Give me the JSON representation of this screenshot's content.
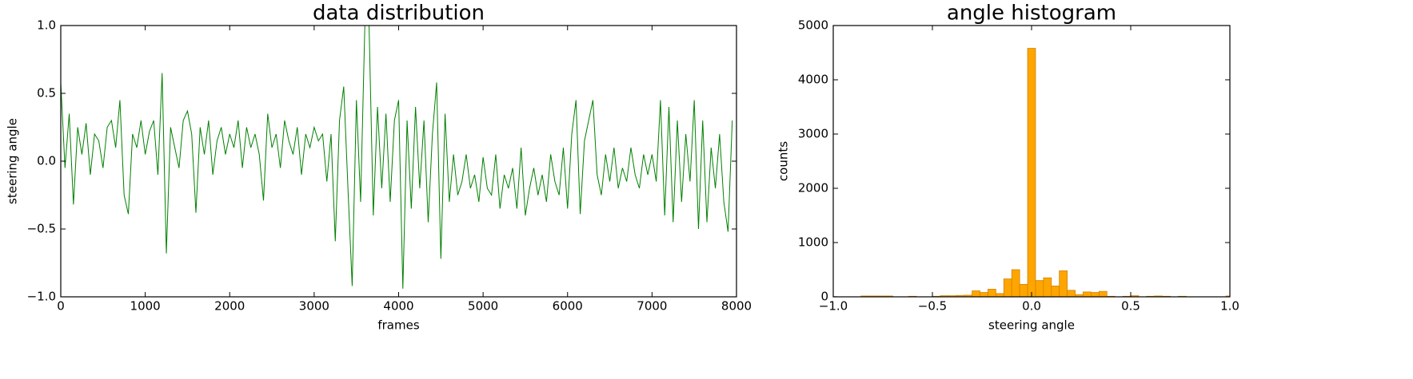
{
  "chart_data": [
    {
      "type": "line",
      "title": "data distribution",
      "x_label": "frames",
      "y_label": "steering angle",
      "color": "#008000",
      "x": [
        0,
        50,
        100,
        150,
        200,
        250,
        300,
        350,
        400,
        450,
        500,
        550,
        600,
        650,
        700,
        750,
        800,
        850,
        900,
        950,
        1000,
        1050,
        1100,
        1150,
        1200,
        1250,
        1300,
        1350,
        1400,
        1450,
        1500,
        1550,
        1600,
        1650,
        1700,
        1750,
        1800,
        1850,
        1900,
        1950,
        2000,
        2050,
        2100,
        2150,
        2200,
        2250,
        2300,
        2350,
        2400,
        2450,
        2500,
        2550,
        2600,
        2650,
        2700,
        2750,
        2800,
        2850,
        2900,
        2950,
        3000,
        3050,
        3100,
        3150,
        3200,
        3250,
        3300,
        3350,
        3400,
        3450,
        3500,
        3550,
        3600,
        3650,
        3700,
        3750,
        3800,
        3850,
        3900,
        3950,
        4000,
        4050,
        4100,
        4150,
        4200,
        4250,
        4300,
        4350,
        4400,
        4450,
        4500,
        4550,
        4600,
        4650,
        4700,
        4750,
        4800,
        4850,
        4900,
        4950,
        5000,
        5050,
        5100,
        5150,
        5200,
        5250,
        5300,
        5350,
        5400,
        5450,
        5500,
        5550,
        5600,
        5650,
        5700,
        5750,
        5800,
        5850,
        5900,
        5950,
        6000,
        6050,
        6100,
        6150,
        6200,
        6250,
        6300,
        6350,
        6400,
        6450,
        6500,
        6550,
        6600,
        6650,
        6700,
        6750,
        6800,
        6850,
        6900,
        6950,
        7000,
        7050,
        7100,
        7150,
        7200,
        7250,
        7300,
        7350,
        7400,
        7450,
        7500,
        7550,
        7600,
        7650,
        7700,
        7750,
        7800,
        7850,
        7900,
        7950
      ],
      "values": [
        0.58,
        -0.05,
        0.35,
        -0.32,
        0.25,
        0.05,
        0.28,
        -0.1,
        0.2,
        0.15,
        -0.05,
        0.25,
        0.3,
        0.1,
        0.45,
        -0.25,
        -0.39,
        0.2,
        0.1,
        0.3,
        0.05,
        0.22,
        0.3,
        -0.1,
        0.65,
        -0.68,
        0.25,
        0.1,
        -0.05,
        0.3,
        0.37,
        0.2,
        -0.38,
        0.25,
        0.05,
        0.3,
        -0.1,
        0.15,
        0.25,
        0.05,
        0.2,
        0.1,
        0.3,
        -0.05,
        0.25,
        0.1,
        0.2,
        0.05,
        -0.29,
        0.35,
        0.1,
        0.2,
        -0.05,
        0.3,
        0.15,
        0.05,
        0.25,
        -0.1,
        0.2,
        0.1,
        0.25,
        0.15,
        0.2,
        -0.15,
        0.2,
        -0.59,
        0.3,
        0.55,
        -0.2,
        -0.92,
        0.45,
        -0.3,
        1.0,
        1.0,
        -0.4,
        0.4,
        -0.2,
        0.35,
        -0.3,
        0.3,
        0.45,
        -0.94,
        0.3,
        -0.35,
        0.4,
        -0.2,
        0.3,
        -0.45,
        0.2,
        0.58,
        -0.72,
        0.35,
        -0.3,
        0.05,
        -0.25,
        -0.15,
        0.05,
        -0.2,
        -0.1,
        -0.3,
        0.03,
        -0.2,
        -0.25,
        0.05,
        -0.35,
        -0.1,
        -0.2,
        -0.05,
        -0.35,
        0.1,
        -0.4,
        -0.2,
        -0.05,
        -0.25,
        -0.1,
        -0.3,
        0.05,
        -0.15,
        -0.25,
        0.1,
        -0.35,
        0.2,
        0.45,
        -0.39,
        0.15,
        0.3,
        0.45,
        -0.1,
        -0.25,
        0.05,
        -0.15,
        0.1,
        -0.2,
        -0.05,
        -0.15,
        0.1,
        -0.1,
        -0.2,
        0.05,
        -0.1,
        0.05,
        -0.15,
        0.45,
        -0.4,
        0.4,
        -0.45,
        0.3,
        -0.3,
        0.2,
        -0.15,
        0.45,
        -0.5,
        0.3,
        -0.45,
        0.1,
        -0.2,
        0.2,
        -0.3,
        -0.52,
        0.3
      ],
      "xlim": [
        0,
        8000
      ],
      "xticks": [
        0,
        1000,
        2000,
        3000,
        4000,
        5000,
        6000,
        7000,
        8000
      ],
      "ylim": [
        -1,
        1
      ],
      "yticks": [
        {
          "value": -1,
          "label": "−1.0"
        },
        {
          "value": -0.5,
          "label": "−0.5"
        },
        {
          "value": 0,
          "label": "0.0"
        },
        {
          "value": 0.5,
          "label": "0.5"
        },
        {
          "value": 1,
          "label": "1.0"
        }
      ],
      "grid": false
    },
    {
      "type": "histogram",
      "title": "angle histogram",
      "x_label": "steering angle",
      "y_label": "counts",
      "color": "#ffa500",
      "edge_color": "#d08400",
      "bins": [
        -1.02,
        -0.98,
        -0.94,
        -0.9,
        -0.86,
        -0.82,
        -0.78,
        -0.74,
        -0.7,
        -0.66,
        -0.62,
        -0.58,
        -0.54,
        -0.5,
        -0.46,
        -0.42,
        -0.38,
        -0.34,
        -0.3,
        -0.26,
        -0.22,
        -0.18,
        -0.14,
        -0.1,
        -0.06,
        -0.02,
        0.02,
        0.06,
        0.1,
        0.14,
        0.18,
        0.22,
        0.26,
        0.3,
        0.34,
        0.38,
        0.42,
        0.46,
        0.5,
        0.54,
        0.58,
        0.62,
        0.66,
        0.7,
        0.74,
        0.78,
        0.82,
        0.86,
        0.9,
        0.94,
        0.98,
        1.02
      ],
      "values": [
        5,
        0,
        0,
        0,
        15,
        15,
        15,
        15,
        0,
        0,
        10,
        0,
        0,
        10,
        20,
        20,
        25,
        30,
        110,
        80,
        140,
        60,
        330,
        500,
        230,
        4580,
        300,
        350,
        200,
        480,
        120,
        40,
        90,
        80,
        100,
        10,
        0,
        10,
        20,
        0,
        10,
        15,
        10,
        0,
        10,
        0,
        0,
        0,
        0,
        0,
        15
      ],
      "xlim": [
        -1,
        1
      ],
      "xticks": [
        {
          "value": -1,
          "label": "−1.0"
        },
        {
          "value": -0.5,
          "label": "−0.5"
        },
        {
          "value": 0,
          "label": "0.0"
        },
        {
          "value": 0.5,
          "label": "0.5"
        },
        {
          "value": 1,
          "label": "1.0"
        }
      ],
      "ylim": [
        0,
        5000
      ],
      "yticks": [
        0,
        1000,
        2000,
        3000,
        4000,
        5000
      ],
      "grid": false
    }
  ]
}
